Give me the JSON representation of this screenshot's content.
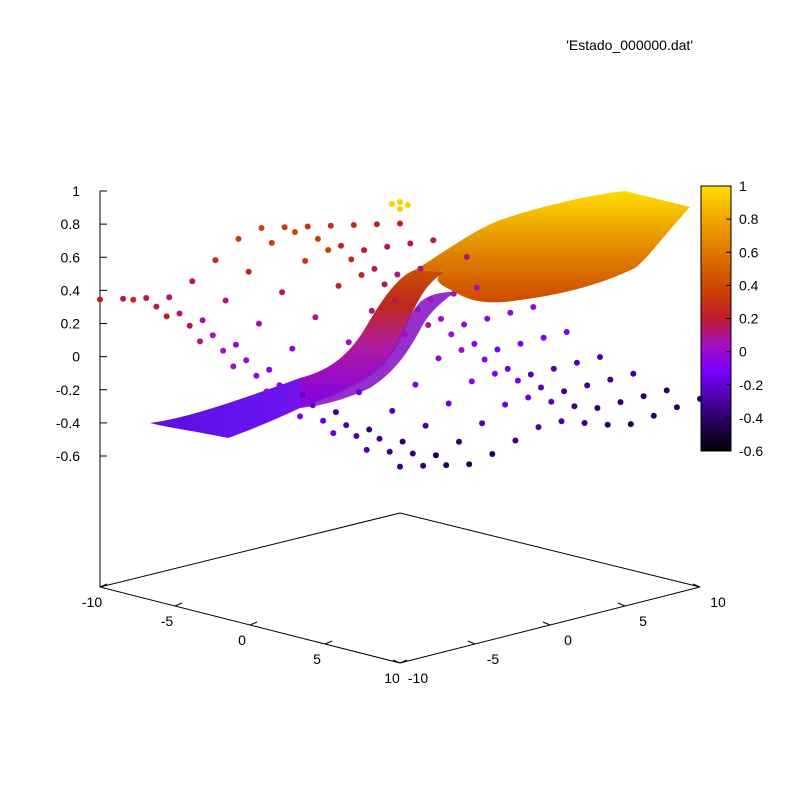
{
  "chart_data": {
    "type": "surface3d",
    "legend_key": "'Estado_000000.dat'",
    "legend_placement": "top-right",
    "x": {
      "range": [
        -10,
        10
      ],
      "tick_labels": [
        "-10",
        "-5",
        "0",
        "5",
        "10"
      ]
    },
    "y": {
      "range": [
        -10,
        10
      ],
      "tick_labels": [
        "-10",
        "-5",
        "0",
        "5",
        "10"
      ]
    },
    "z": {
      "range": [
        -0.6,
        1.0
      ],
      "tick_labels": [
        "1",
        "0.8",
        "0.6",
        "0.4",
        "0.2",
        "0",
        "-0.2",
        "-0.4",
        "-0.6"
      ]
    },
    "colorbar": {
      "range": [
        -0.6,
        1.0
      ],
      "tick_labels": [
        "1",
        "0.8",
        "0.6",
        "0.4",
        "0.2",
        "0",
        "-0.2",
        "-0.4",
        "-0.6"
      ],
      "palette": [
        "#000000",
        "#2b0066",
        "#7a00ff",
        "#a30fc4",
        "#c01a2b",
        "#cc4700",
        "#e07700",
        "#f0a800",
        "#ffdd00"
      ]
    },
    "grid": false,
    "surface": {
      "description_values": "kink profile",
      "low_plateau": -0.4,
      "high_plateau": 0.9
    },
    "scatter_series_rows": [
      {
        "y": -10,
        "z": [
          0.2,
          0.25,
          0.2,
          0.1,
          0.0,
          -0.1,
          -0.2,
          -0.25,
          -0.3,
          -0.35
        ]
      },
      {
        "y": -5,
        "z": [
          0.1,
          0.0,
          -0.1,
          -0.2,
          -0.3,
          -0.35,
          -0.4,
          -0.42,
          -0.45,
          -0.45
        ]
      },
      {
        "y": 0,
        "z": [
          0.4,
          0.45,
          0.4,
          0.3,
          0.2,
          0.1,
          0.0,
          -0.1,
          -0.2,
          -0.3
        ]
      },
      {
        "y": 5,
        "z": [
          0.3,
          0.2,
          0.1,
          0.0,
          -0.1,
          -0.2,
          -0.3,
          -0.35,
          -0.4,
          -0.45
        ]
      },
      {
        "y": 10,
        "z": [
          0.2,
          0.15,
          0.1,
          0.0,
          -0.1,
          -0.2,
          -0.3,
          -0.35,
          -0.4,
          -0.4
        ]
      }
    ]
  }
}
